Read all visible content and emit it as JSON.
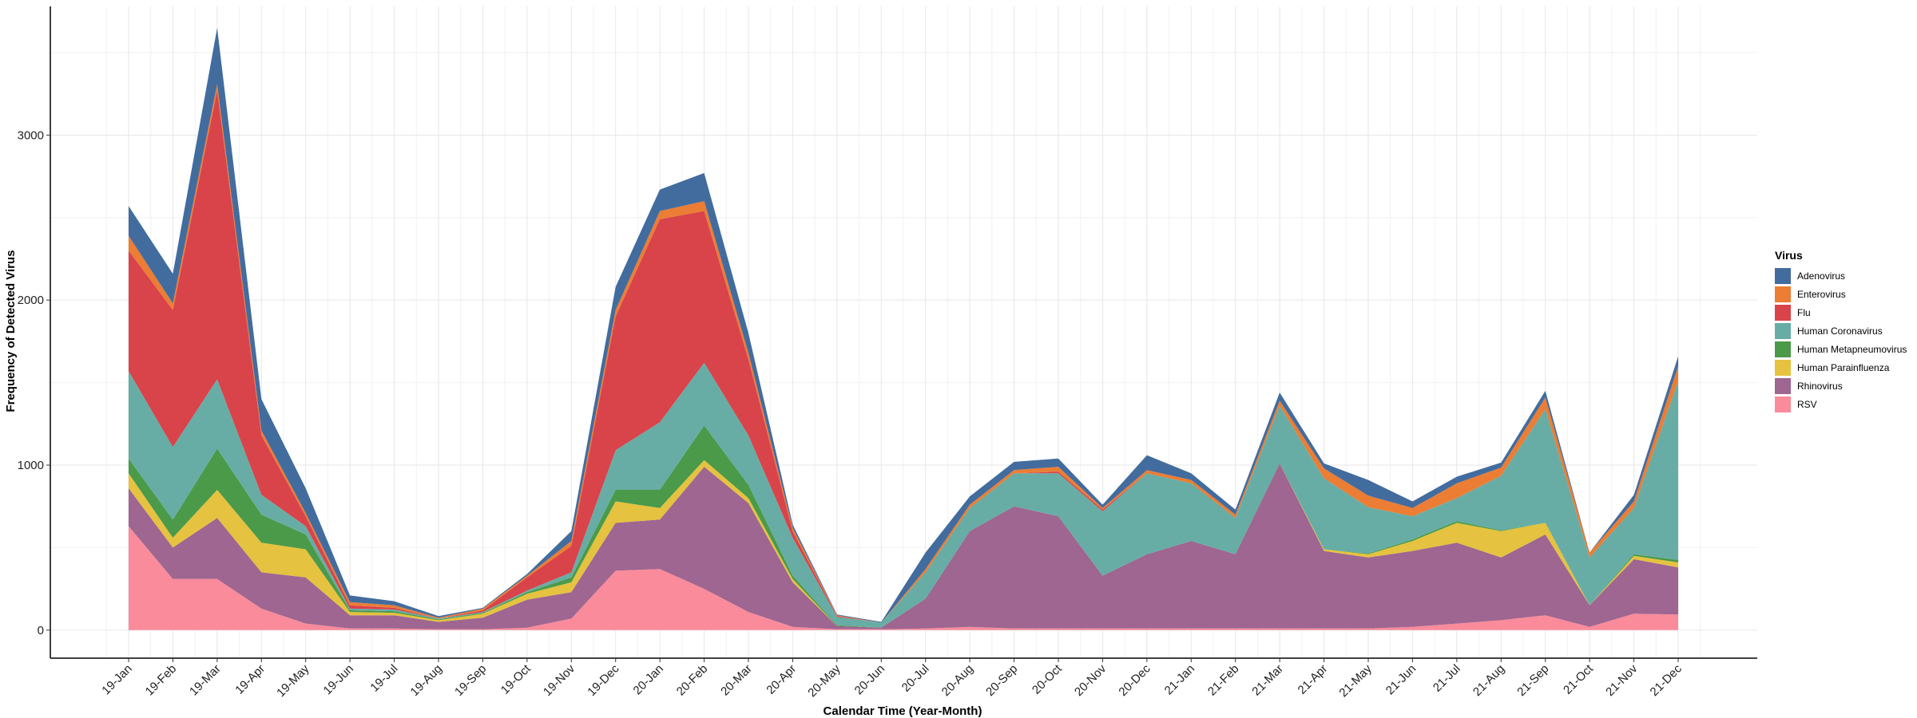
{
  "chart_data": {
    "type": "area",
    "stacked": true,
    "xlabel": "Calendar Time (Year-Month)",
    "ylabel": "Frequency of Detected Virus",
    "ylim": [
      -170,
      3780
    ],
    "yticks": [
      0,
      1000,
      2000,
      3000
    ],
    "grid": true,
    "legend_title": "Virus",
    "legend_position": "right",
    "categories": [
      "19-Jan",
      "19-Feb",
      "19-Mar",
      "19-Apr",
      "19-May",
      "19-Jun",
      "19-Jul",
      "19-Aug",
      "19-Sep",
      "19-Oct",
      "19-Nov",
      "19-Dec",
      "20-Jan",
      "20-Feb",
      "20-Mar",
      "20-Apr",
      "20-May",
      "20-Jun",
      "20-Jul",
      "20-Aug",
      "20-Sep",
      "20-Oct",
      "20-Nov",
      "20-Dec",
      "21-Jan",
      "21-Feb",
      "21-Mar",
      "21-Apr",
      "21-May",
      "21-Jun",
      "21-Jul",
      "21-Aug",
      "21-Sep",
      "21-Oct",
      "21-Nov",
      "21-Dec"
    ],
    "series": [
      {
        "name": "RSV",
        "color": "#F98B9B",
        "values": [
          630,
          310,
          310,
          130,
          40,
          10,
          10,
          5,
          5,
          15,
          70,
          360,
          370,
          250,
          110,
          20,
          5,
          5,
          10,
          20,
          10,
          10,
          10,
          10,
          10,
          10,
          10,
          10,
          10,
          20,
          40,
          60,
          90,
          20,
          100,
          95
        ]
      },
      {
        "name": "Rhinovirus",
        "color": "#9E6690",
        "values": [
          230,
          190,
          370,
          220,
          280,
          80,
          80,
          45,
          70,
          170,
          160,
          290,
          300,
          740,
          660,
          270,
          20,
          10,
          180,
          580,
          740,
          680,
          320,
          450,
          530,
          450,
          1000,
          470,
          430,
          460,
          490,
          380,
          490,
          130,
          330,
          285
        ]
      },
      {
        "name": "Human Parainfluenza",
        "color": "#E5C23F",
        "values": [
          90,
          60,
          170,
          180,
          170,
          20,
          15,
          10,
          25,
          35,
          60,
          130,
          70,
          40,
          30,
          20,
          0,
          0,
          0,
          0,
          0,
          0,
          0,
          0,
          0,
          0,
          0,
          10,
          20,
          60,
          120,
          160,
          70,
          0,
          20,
          30
        ]
      },
      {
        "name": "Human Metapneumovirus",
        "color": "#4A9A4A",
        "values": [
          90,
          110,
          250,
          170,
          90,
          10,
          10,
          5,
          5,
          10,
          30,
          70,
          110,
          210,
          80,
          20,
          5,
          0,
          0,
          0,
          0,
          0,
          0,
          0,
          0,
          0,
          0,
          0,
          5,
          10,
          10,
          5,
          0,
          0,
          10,
          15
        ]
      },
      {
        "name": "Human Coronavirus",
        "color": "#67ADA5",
        "values": [
          530,
          440,
          420,
          120,
          50,
          10,
          10,
          5,
          5,
          10,
          30,
          240,
          410,
          380,
          300,
          230,
          50,
          30,
          160,
          140,
          200,
          260,
          390,
          490,
          350,
          220,
          350,
          430,
          280,
          140,
          140,
          330,
          690,
          290,
          280,
          1085
        ]
      },
      {
        "name": "Flu",
        "color": "#D9434A",
        "values": [
          730,
          830,
          1750,
          360,
          60,
          20,
          10,
          0,
          10,
          80,
          160,
          810,
          1230,
          920,
          460,
          40,
          5,
          0,
          0,
          0,
          0,
          10,
          10,
          0,
          0,
          0,
          0,
          0,
          0,
          0,
          0,
          0,
          0,
          0,
          0,
          0
        ]
      },
      {
        "name": "Enterovirus",
        "color": "#EB7D34",
        "values": [
          90,
          40,
          40,
          30,
          20,
          20,
          15,
          5,
          10,
          10,
          30,
          40,
          50,
          60,
          40,
          20,
          5,
          0,
          20,
          20,
          20,
          30,
          10,
          20,
          20,
          20,
          30,
          60,
          70,
          50,
          90,
          50,
          70,
          30,
          40,
          90
        ]
      },
      {
        "name": "Adenovirus",
        "color": "#426C9E",
        "values": [
          180,
          180,
          340,
          190,
          150,
          40,
          25,
          10,
          5,
          10,
          60,
          140,
          130,
          170,
          120,
          20,
          5,
          5,
          100,
          50,
          50,
          50,
          20,
          90,
          40,
          30,
          50,
          30,
          95,
          40,
          40,
          30,
          40,
          0,
          40,
          60
        ]
      }
    ]
  }
}
